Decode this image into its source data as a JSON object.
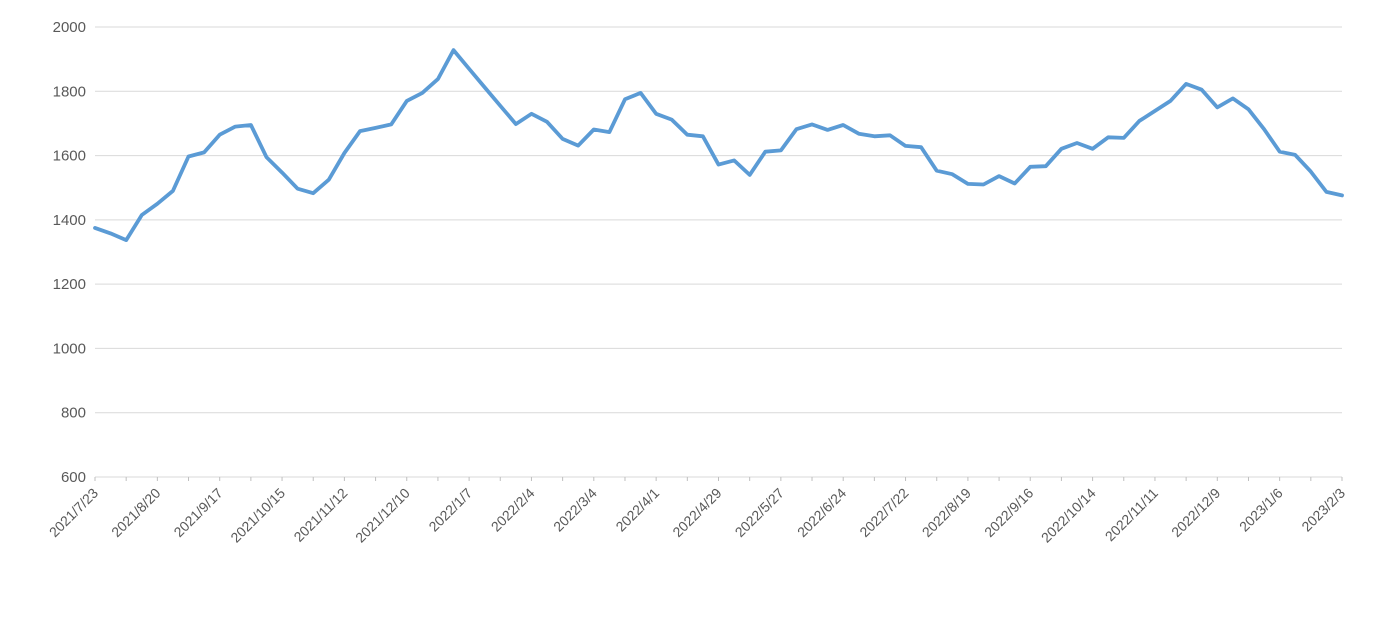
{
  "page": {
    "background_color": "#ffffff",
    "title": ""
  },
  "chart_data": {
    "type": "line",
    "title": "",
    "subtitle": "",
    "xlabel": "",
    "ylabel": "",
    "legend_position": "none",
    "grid": true,
    "x_label_rotation": -45,
    "ylim": [
      600,
      2000
    ],
    "y_tick_interval": 200,
    "y_tick_labels": [
      "600",
      "800",
      "1000",
      "1200",
      "1400",
      "1600",
      "1800",
      "2000"
    ],
    "x_tick_labels": [
      "2021/7/23",
      "2021/8/20",
      "2021/9/17",
      "2021/10/15",
      "2021/11/12",
      "2021/12/10",
      "2022/1/7",
      "2022/2/4",
      "2022/3/4",
      "2022/4/1",
      "2022/4/29",
      "2022/5/27",
      "2022/6/24",
      "2022/7/22",
      "2022/8/19",
      "2022/9/16",
      "2022/10/14",
      "2022/11/11",
      "2022/12/9",
      "2023/1/6",
      "2023/2/3"
    ],
    "x_labels_shown_every": 4,
    "x": [
      "2021/7/23",
      "2021/7/30",
      "2021/8/6",
      "2021/8/13",
      "2021/8/20",
      "2021/8/27",
      "2021/9/3",
      "2021/9/10",
      "2021/9/17",
      "2021/9/24",
      "2021/10/1",
      "2021/10/8",
      "2021/10/15",
      "2021/10/22",
      "2021/10/29",
      "2021/11/5",
      "2021/11/12",
      "2021/11/19",
      "2021/11/26",
      "2021/12/3",
      "2021/12/10",
      "2021/12/17",
      "2021/12/24",
      "2021/12/31",
      "2022/1/7",
      "2022/1/14",
      "2022/1/21",
      "2022/1/28",
      "2022/2/4",
      "2022/2/11",
      "2022/2/18",
      "2022/2/25",
      "2022/3/4",
      "2022/3/11",
      "2022/3/18",
      "2022/3/25",
      "2022/4/1",
      "2022/4/8",
      "2022/4/15",
      "2022/4/22",
      "2022/4/29",
      "2022/5/6",
      "2022/5/13",
      "2022/5/20",
      "2022/5/27",
      "2022/6/3",
      "2022/6/10",
      "2022/6/17",
      "2022/6/24",
      "2022/7/1",
      "2022/7/8",
      "2022/7/15",
      "2022/7/22",
      "2022/7/29",
      "2022/8/5",
      "2022/8/12",
      "2022/8/19",
      "2022/8/26",
      "2022/9/2",
      "2022/9/9",
      "2022/9/16",
      "2022/9/23",
      "2022/9/30",
      "2022/10/7",
      "2022/10/14",
      "2022/10/21",
      "2022/10/28",
      "2022/11/4",
      "2022/11/11",
      "2022/11/18",
      "2022/11/25",
      "2022/12/2",
      "2022/12/9",
      "2022/12/16",
      "2022/12/23",
      "2022/12/30",
      "2023/1/6",
      "2023/1/13",
      "2023/1/20",
      "2023/1/27",
      "2023/2/3"
    ],
    "values": [
      1375,
      1358,
      1337,
      1415,
      1450,
      1490,
      1597,
      1610,
      1665,
      1690,
      1695,
      1595,
      1547,
      1497,
      1483,
      1525,
      1608,
      1676,
      1686,
      1697,
      1770,
      1795,
      1838,
      1928,
      1870,
      1812,
      1755,
      1698,
      1730,
      1705,
      1652,
      1631,
      1681,
      1673,
      1775,
      1795,
      1730,
      1712,
      1665,
      1660,
      1572,
      1585,
      1540,
      1612,
      1616,
      1682,
      1697,
      1680,
      1695,
      1668,
      1660,
      1663,
      1630,
      1626,
      1553,
      1542,
      1512,
      1510,
      1536,
      1513,
      1565,
      1567,
      1621,
      1639,
      1621,
      1657,
      1655,
      1708,
      1739,
      1770,
      1823,
      1805,
      1750,
      1778,
      1744,
      1682,
      1612,
      1602,
      1550,
      1487,
      1476
    ],
    "style": {
      "line_color": "#5b9bd5",
      "line_width": 3.8,
      "gridline_color": "#d9d9d9",
      "axis_line_color": "#d9d9d9",
      "tick_color": "#bfbfbf",
      "label_color": "#595959",
      "y_label_font_size": 15,
      "x_label_font_size": 14
    }
  }
}
